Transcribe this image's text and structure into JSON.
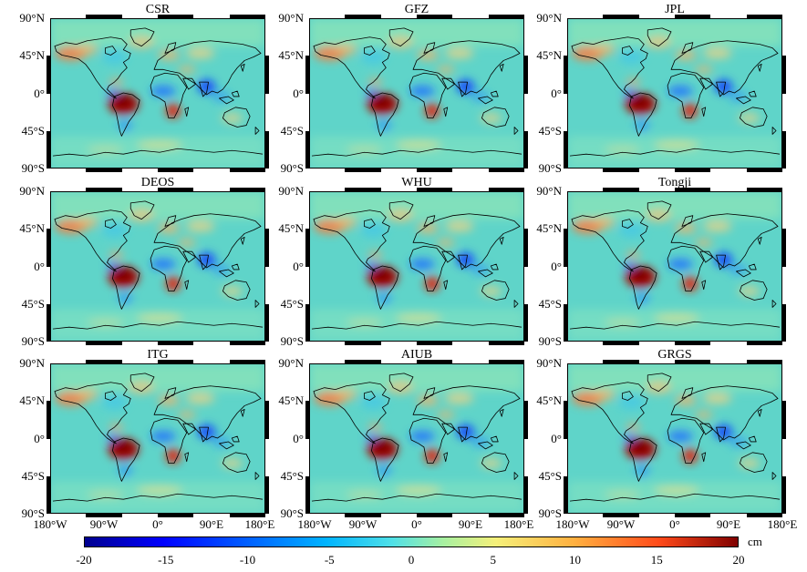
{
  "panels": [
    {
      "id": "csr",
      "title": "CSR"
    },
    {
      "id": "gfz",
      "title": "GFZ"
    },
    {
      "id": "jpl",
      "title": "JPL"
    },
    {
      "id": "deos",
      "title": "DEOS"
    },
    {
      "id": "whu",
      "title": "WHU"
    },
    {
      "id": "tongji",
      "title": "Tongji"
    },
    {
      "id": "itg",
      "title": "ITG"
    },
    {
      "id": "aiub",
      "title": "AIUB"
    },
    {
      "id": "grgs",
      "title": "GRGS"
    }
  ],
  "latitude_labels": [
    "90°N",
    "45°N",
    "0°",
    "45°S",
    "90°S"
  ],
  "longitude_labels": [
    "180°W",
    "90°W",
    "0°",
    "90°E",
    "180°E"
  ],
  "colorbar": {
    "unit": "cm",
    "min": -20,
    "max": 20,
    "ticks": [
      "-20",
      "-15",
      "-10",
      "-5",
      "0",
      "5",
      "10",
      "15",
      "20"
    ],
    "colors": [
      "#00008f",
      "#0000ff",
      "#00b4ff",
      "#5fd4c9",
      "#f5f07a",
      "#ff4a1a",
      "#800000"
    ]
  }
}
